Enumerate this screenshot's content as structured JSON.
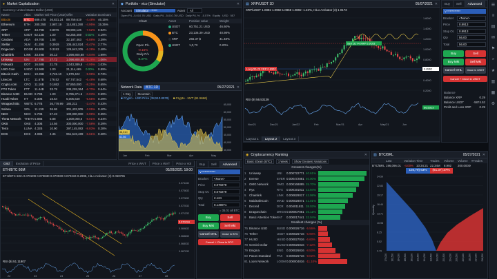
{
  "market_cap": {
    "title": "Market Capitalization",
    "currency": "Currency: United States Dollar (USD)",
    "columns": [
      "Name",
      "Abbr.",
      "Market Valu.",
      "Price (USD)",
      "Offer",
      "Variation",
      "Dominance"
    ],
    "rows": [
      {
        "name": "Bitcoin",
        "abbr": "BTC",
        "mv": "689.47B",
        "price": "36,831.24",
        "offer": "89,759,619",
        "var": "-4.48%",
        "dom": "46.15%",
        "dir": "dn",
        "hl": true
      },
      {
        "name": "Ethereum",
        "abbr": "ETH",
        "mv": "280.25B",
        "price": "2,987.19",
        "offer": "114,851,390",
        "var": "-4.95%",
        "dom": "15.35%",
        "dir": "dn"
      },
      {
        "name": "XRP",
        "abbr": "XRP",
        "mv": "33.79B",
        "price": "0.8976",
        "offer": "99,990,126",
        "var": "-7.52%",
        "dom": "0.92%",
        "dir": "dn"
      },
      {
        "name": "Tether",
        "abbr": "USDT",
        "mv": "62.13B",
        "price": "1.00",
        "offer": "62,255,459",
        "var": "0.02%",
        "dom": "4.19%",
        "dir": "up"
      },
      {
        "name": "Cardano",
        "abbr": "ADA",
        "mv": "49.70B",
        "price": "1.55",
        "offer": "32,187,463",
        "var": "-6.88%",
        "dom": "3.39%",
        "dir": "dn"
      },
      {
        "name": "Stellar",
        "abbr": "XLM",
        "mv": "41.28B",
        "price": "0.3919",
        "offer": "105,442,024",
        "var": "-6.47%",
        "dom": "2.77%",
        "dir": "dn"
      },
      {
        "name": "Dogecoin",
        "abbr": "DOGE",
        "mv": "40.80B",
        "price": "0.3153",
        "offer": "129,643,205",
        "var": "-6.28%",
        "dom": "2.48%",
        "dir": "dn"
      },
      {
        "name": "Chainlink",
        "abbr": "LINK",
        "mv": "33.49B",
        "price": "30.13",
        "offer": "1,098,800,88",
        "var": "-4.04%",
        "dom": "1.99%",
        "dir": "dn"
      },
      {
        "name": "Uniswap",
        "abbr": "UNI",
        "mv": "17.78B",
        "price": "27.72",
        "offer": "1,098,800,88",
        "var": "-5.28%",
        "dom": "1.06%",
        "dir": "dn",
        "sel": true
      },
      {
        "name": "Polkadot",
        "abbr": "DOT",
        "mv": "16.58B",
        "price": "21.78",
        "offer": "1,043,389,8",
        "var": "-4.95%",
        "dom": "1.03%",
        "dir": "dn"
      },
      {
        "name": "USD Coin",
        "abbr": "USDC",
        "mv": "13.98B",
        "price": "1.00",
        "offer": "21,114,465",
        "var": "0.00%",
        "dom": "0.89%",
        "dir": "up"
      },
      {
        "name": "Bitcoin Cash",
        "abbr": "BCH",
        "mv": "10.39B",
        "price": "2,745.10",
        "offer": "1,979,422",
        "var": "-9.99%",
        "dom": "0.73%",
        "dir": "dn"
      },
      {
        "name": "Litecoin",
        "abbr": "LTC",
        "mv": "11.67B",
        "price": "176.52",
        "offer": "67,747,542",
        "var": "-6.48%",
        "dom": "0.68%",
        "dir": "dn"
      },
      {
        "name": "Crypto.com",
        "abbr": "CRO",
        "mv": "11.16B",
        "price": "0.1652",
        "offer": "87,850,000",
        "var": "-8.25%",
        "dom": "0.65%",
        "dir": "dn"
      },
      {
        "name": "FTX Token",
        "abbr": "FTT",
        "mv": "11.44B",
        "price": "33.78",
        "offer": "338,255,364",
        "var": "-6.70%",
        "dom": "0.64%",
        "dir": "dn"
      },
      {
        "name": "Binance USD",
        "abbr": "BUSD",
        "mv": "8.79B",
        "price": "1.00",
        "offer": "8,786,371.6",
        "var": "-0.03%",
        "dom": "0.59%",
        "dir": "dn"
      },
      {
        "name": "Huobi Token",
        "abbr": "HT",
        "mv": "8.30B",
        "price": "16.54",
        "offer": "5,005,640",
        "var": "-6.55%",
        "dom": "0.49%",
        "dir": "dn"
      },
      {
        "name": "Wrapped Bitc",
        "abbr": "WBTC",
        "mv": "6.77B",
        "price": "36,779.99",
        "offer": "184,211",
        "var": "-3.47%",
        "dom": "0.43%",
        "dir": "dn"
      },
      {
        "name": "Solana",
        "abbr": "SOL",
        "mv": "11.11B",
        "price": "36.86",
        "offer": "301,432,005",
        "var": "-3.06%",
        "dom": "0.40%",
        "dir": "dn"
      },
      {
        "name": "NEO",
        "abbr": "NEO",
        "mv": "5.70B",
        "price": "57.23",
        "offer": "100,000,000",
        "var": "-6.99%",
        "dom": "0.35%",
        "dir": "dn"
      },
      {
        "name": "Theta Network",
        "abbr": "THETA",
        "mv": "5.88B",
        "price": "5.88",
        "offer": "1,000,000,0",
        "var": "-8.01%",
        "dom": "0.34%",
        "dir": "dn"
      },
      {
        "name": "OKB",
        "abbr": "OKB",
        "mv": "4.30B",
        "price": "14.56",
        "offer": "300,000,000",
        "var": "-7.58%",
        "dom": "0.29%",
        "dir": "dn"
      },
      {
        "name": "Terra",
        "abbr": "LUNA",
        "mv": "4.32B",
        "price": "10.90",
        "offer": "397,145,082",
        "var": "-8.83%",
        "dom": "0.28%",
        "dir": "dn"
      },
      {
        "name": "EOS",
        "abbr": "EOS",
        "mv": "4.08B",
        "price": "4.36",
        "offer": "951,519,489",
        "var": "-6.61%",
        "dom": "0.28%",
        "dir": "dn"
      }
    ]
  },
  "portfolio": {
    "title": "Portfolio - vico (Simulator)",
    "account_label": "Account",
    "account_value": "Simulator - *****",
    "asset_label": "Asset",
    "asset_value": "All",
    "stats": [
      "Open P/L -5,010.76 USD",
      "Daily P/L -5,010.76 USD",
      "Daily P/L %",
      "-5.57%",
      "Equity",
      "USD",
      "557"
    ],
    "chart_title": "Chart",
    "donut_lines": [
      "Open P/L",
      "-0.16%",
      "Daily P/L",
      "6.37%"
    ],
    "columns": [
      "Asset",
      "Position value",
      "Weight"
    ],
    "rows": [
      {
        "asset": "USDT",
        "val": "60,751.21 USD",
        "w": "46.60%",
        "color": "#26a17b"
      },
      {
        "asset": "BTC",
        "val": "23,136.39 USD",
        "w": "40.98%",
        "color": "#f7931a"
      },
      {
        "asset": "XRP",
        "val": "266.37 $",
        "w": "41.48%",
        "color": "#23292f"
      },
      {
        "asset": "USDT",
        "val": "1,0,73",
        "w": "0.20%",
        "color": "#26a17b"
      }
    ]
  },
  "xrp_chart": {
    "title": "XRP/USDT 1D",
    "date": "05/07/2021",
    "header": "XRP/USDT 1.0892  1.0950  1.0858  1.0892  -1.23%,  HiLo Activator (3)  1.0173",
    "sell_tag": "Sell 16.74 XRP  0.9103",
    "long_tag": "Long 56.29  XRP  0.8962",
    "rsi_label": "RSI (9)  56.53139",
    "prices": [
      "1.6000",
      "1.4000",
      "1.2000",
      "1.0000",
      "0.8000",
      "0.6000",
      "0.4000",
      "0.2000"
    ],
    "last_price": "0.8962",
    "rsi_value": "56.5313",
    "x_labels": [
      "Nov/21",
      "Dec/21",
      "Jan/22",
      "Feb",
      "Mar/21",
      "Apr",
      "May/21",
      "Jun"
    ],
    "tabs": [
      "Layout 1",
      "Layout 2",
      "Layout 3"
    ]
  },
  "order_right": {
    "buy": "Buy",
    "sell": "Sell",
    "advanced": "Advanced",
    "account": "V ***********",
    "bracket_label": "Bracket",
    "bracket_value": "<None>",
    "price_label": "Price",
    "price_value": "0.8913",
    "stop_label": "Stop Ot.",
    "stop_value": "0.8913",
    "qty_label": "Qty",
    "qty_value": "56.00",
    "total_label": "Total",
    "total_value": "56.00",
    "btn_buy": "Buy",
    "btn_sell": "Sell",
    "btn_buymkt": "Buy Mkt",
    "btn_sellmkt": "Sell Mkt",
    "btn_cancel": "Cancel OHL",
    "btn_close": "Close in USDT",
    "btn_cancel_close": "Cancel + Close in USDT",
    "balance_title": "Balance",
    "balances": [
      [
        "Balance XRP",
        "0.29"
      ],
      [
        "Balance USDT",
        "-5874.52"
      ],
      [
        "Profit and Loss XRP",
        "0.29"
      ]
    ]
  },
  "network": {
    "title": "Network Data",
    "symbol": "BTC 1D",
    "date": "05/27/2021",
    "range": "1 Day",
    "style": "Mountain",
    "legend1": "Crypto - USD Price (38,510.8578)",
    "legend2": "Crypto - NVT (61.5666)",
    "y_labels": [
      "65,000",
      "60,000",
      "55,000",
      "50,000",
      "45,000",
      "40,000",
      "35,000"
    ],
    "x_labels": [
      "Jan",
      "Feb",
      "Mar",
      "Apr",
      "May"
    ],
    "tag1": "38,510",
    "tag2": "61.56"
  },
  "eth_chart": {
    "tabs": [
      "Grid",
      "Evolution of Price"
    ],
    "title": "ETH/BTC 60M",
    "date": "05/28/2021 18:00",
    "header": "ETH/BTC 60m  0.070209  0.070830  0.070930  0.070234  0.2995,  HiLo Activator (3)  0.068796",
    "rsi_label": "RSI (9)  51.11807",
    "prices": [
      "0.074432",
      "0.073632",
      "0.072832",
      "0.072032",
      "0.071232",
      "0.070432",
      "0.069632",
      "0.068832",
      "0.068032",
      "0.067232"
    ],
    "last_price": "0.070234",
    "x_labels": [
      "22",
      "23",
      "24",
      "25",
      "26",
      "27",
      "28"
    ],
    "tab_price": "Price x WVT",
    "tab_price2": "Price x WVT",
    "tab_price3": "Price x Vol"
  },
  "order_mid": {
    "buy": "Buy",
    "sell": "Sell",
    "advanced": "Advanced",
    "account": "V ***********",
    "bracket_label": "Bracket",
    "bracket_value": "<None>",
    "price_label": "Price",
    "price_value": "0.070279",
    "stop_label": "Stop Ot.",
    "stop_value": "0.070279",
    "qty_label": "Qty",
    "qty_value": "2.124",
    "total_label": "Total",
    "total_value": "0.149071",
    "cost": "= 35.01 all BTC",
    "btn_buy": "Buy",
    "btn_sell": "Sell",
    "btn_buymkt": "Buy Mkt",
    "btn_sellmkt": "Sell Mkt",
    "btn_cancel": "Cancel OHL",
    "btn_close": "Close in BTC",
    "btn_cancel_close": "Cancel + Close in BTC"
  },
  "ranking": {
    "title": "Cryptocurrency Ranking",
    "filter": "Basic Ebrain (BTC)",
    "period": "1 Week",
    "view": "Show Greatest Variations",
    "greatest_title": "Greatest changes(%)",
    "smallest_title": "Smallest changes (%)",
    "greatest": [
      {
        "n": "1",
        "name": "Uniswap",
        "abbr": "UNI",
        "price": "0.000722771",
        "pct": "40.61%",
        "bar": 1.0
      },
      {
        "n": "2",
        "name": "Everse",
        "abbr": "EVER",
        "price": "0.000472881",
        "pct": "40.00%",
        "bar": 0.96
      },
      {
        "n": "3",
        "name": "OMG Network",
        "abbr": "OMG",
        "price": "0.000168895",
        "pct": "35.70%",
        "bar": 0.84
      },
      {
        "n": "4",
        "name": "Ryx",
        "abbr": "RYX",
        "price": "0.000191011",
        "pct": "43.94%",
        "bar": 0.78
      },
      {
        "n": "5",
        "name": "Chainlink",
        "abbr": "LINK",
        "price": "0.000829017",
        "pct": "43.98%",
        "bar": 0.72
      },
      {
        "n": "6",
        "name": "MaidSafeCoin",
        "abbr": "MAID",
        "price": "0.000028071",
        "pct": "41.01%",
        "bar": 0.62
      },
      {
        "n": "7",
        "name": "Decred",
        "abbr": "DCR",
        "price": "0.004011811",
        "pct": "38.03%",
        "bar": 0.55
      },
      {
        "n": "8",
        "name": "Dragonchain",
        "abbr": "DRGN",
        "price": "0.000007081",
        "pct": "35.11%",
        "bar": 0.5
      },
      {
        "n": "9",
        "name": "Basic Attention Token",
        "abbr": "BAT",
        "price": "0.000017441",
        "pct": "33.04%",
        "bar": 0.46
      }
    ],
    "smallest": [
      {
        "n": "75",
        "name": "Binance USD",
        "abbr": "BUSD",
        "price": "0.000026716",
        "pct": "-5.56%",
        "bar": 0.18
      },
      {
        "n": "76",
        "name": "Tether",
        "abbr": "USDT",
        "price": "0.000026716",
        "pct": "-5.90%",
        "bar": 0.2
      },
      {
        "n": "77",
        "name": "HUSD",
        "abbr": "HUSD",
        "price": "0.000027016",
        "pct": "-6.60%",
        "bar": 0.24
      },
      {
        "n": "78",
        "name": "Gemini Dollar",
        "abbr": "GUSD",
        "price": "0.000026816",
        "pct": "-7.12%",
        "bar": 0.28
      },
      {
        "n": "79",
        "name": "Enigma",
        "abbr": "ENG",
        "price": "0.000026816",
        "pct": "-8.50%",
        "bar": 0.36
      },
      {
        "n": "80",
        "name": "Paxos Standard",
        "abbr": "PAX",
        "price": "0.000026716",
        "pct": "-9.02%",
        "bar": 0.45
      },
      {
        "n": "81",
        "name": "Loom Network",
        "abbr": "LOOM",
        "price": "0.000004816",
        "pct": "-11.10%",
        "bar": 0.6
      }
    ]
  },
  "depth": {
    "title": "BTC/BRL",
    "date": "05/27/2021",
    "columns": [
      "",
      "Last",
      "Variation",
      "Time",
      "Trades",
      "Volume",
      "Volume",
      "#Trades",
      "Hi"
    ],
    "quote": [
      "BTC/BRL",
      "196,096.01",
      "-4.00%",
      "10:34:21",
      "22.34M",
      "8.992",
      "200.00000"
    ],
    "bid": "104,79) 63%",
    "ask": "(61.37) 37%",
    "y_label": "Quantity",
    "y_ticks": [
      "24.59",
      "22.83",
      "19.17",
      "16.44",
      "13.71",
      "10.98",
      "8.25",
      "5.52",
      "2.79"
    ],
    "x_ticks": [
      "179,000",
      "181,500",
      "184,000",
      "186,500",
      "189,000",
      "191,500",
      "194,000",
      "196,500",
      "199,000",
      "201,500",
      "204,000",
      "206,500",
      "209,000",
      "211,500",
      "214,000",
      "216,500"
    ]
  },
  "sidebar_icons": [
    "watchlist-icon",
    "orders-icon",
    "chart-icon",
    "news-icon",
    "alerts-icon",
    "scanner-icon",
    "ranking-icon",
    "depth-icon",
    "calendar-icon",
    "settings-icon"
  ]
}
